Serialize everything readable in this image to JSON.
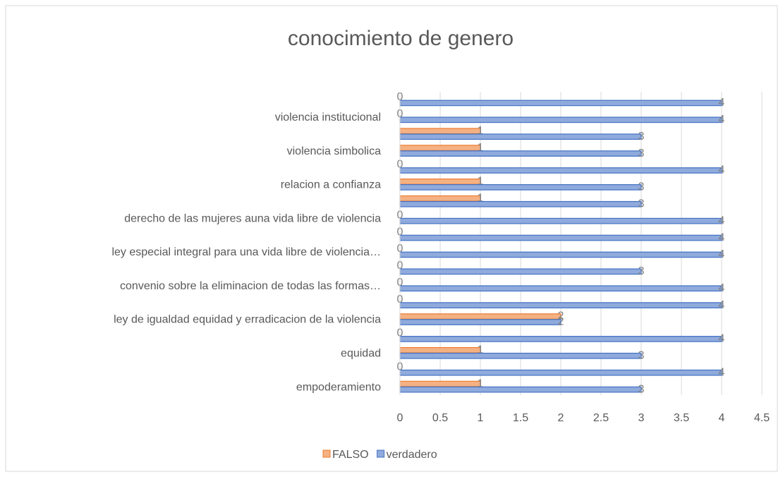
{
  "chart_data": {
    "type": "bar",
    "orientation": "horizontal",
    "title": "conocimiento de genero",
    "categories": [
      "empoderamiento",
      null,
      "equidad",
      null,
      "ley de igualdad equidad y erradicacion de la violencia",
      null,
      "convenio sobre la eliminacion de todas las formas…",
      null,
      "ley especial integral para una vida libre de violencia…",
      null,
      "derecho de las mujeres auna vida libre de violencia",
      null,
      "relacion a confianza",
      null,
      "violencia simbolica",
      null,
      "violencia institucional",
      null
    ],
    "series": [
      {
        "name": "FALSO",
        "color": "#f4b183",
        "edge": "#ed7d31",
        "values": [
          1,
          0,
          1,
          0,
          2,
          0,
          0,
          0,
          0,
          0,
          0,
          1,
          1,
          0,
          1,
          1,
          0,
          0
        ]
      },
      {
        "name": "verdadero",
        "color": "#8faadc",
        "edge": "#4472c4",
        "values": [
          3,
          4,
          3,
          4,
          2,
          4,
          4,
          3,
          4,
          4,
          4,
          3,
          3,
          4,
          3,
          3,
          4,
          4
        ]
      }
    ],
    "xlim": [
      0,
      4.5
    ],
    "xticks": [
      0,
      0.5,
      1,
      1.5,
      2,
      2.5,
      3,
      3.5,
      4,
      4.5
    ],
    "grid": true,
    "legend": "bottom",
    "data_labels": true
  }
}
